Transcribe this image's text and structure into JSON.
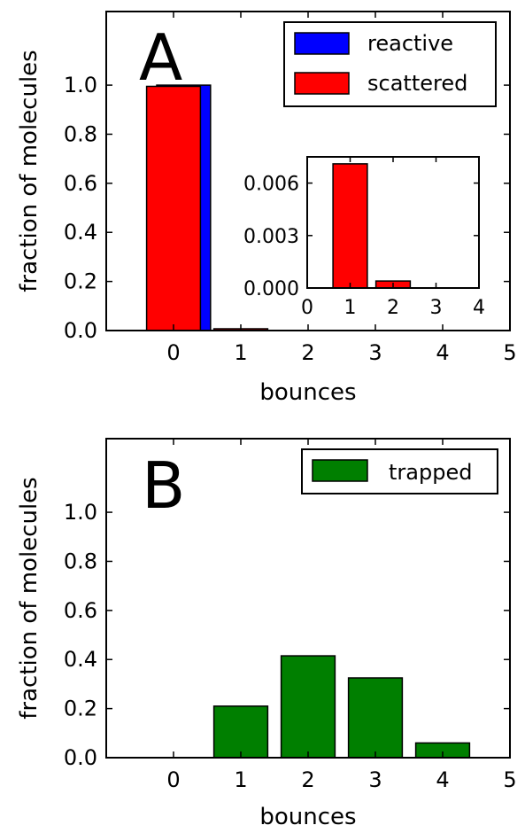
{
  "chart_data": [
    {
      "type": "bar",
      "panel_letter": "A",
      "xlabel": "bounces",
      "ylabel": "fraction of molecules",
      "xlim": [
        -1,
        5
      ],
      "ylim": [
        0,
        1.3
      ],
      "xticks": [
        "0",
        "1",
        "2",
        "3",
        "4",
        "5"
      ],
      "yticks": [
        "0.0",
        "0.2",
        "0.4",
        "0.6",
        "0.8",
        "1.0"
      ],
      "legend_position": "top-right",
      "series": [
        {
          "name": "reactive",
          "color": "#0000ff",
          "x": [
            0.15
          ],
          "values": [
            1.0
          ],
          "width": 0.8
        },
        {
          "name": "scattered",
          "color": "#ff0000",
          "x": [
            0,
            1
          ],
          "values": [
            0.995,
            0.0072
          ],
          "width": 0.8
        }
      ],
      "inset": {
        "xlim": [
          0,
          4
        ],
        "ylim": [
          0,
          0.0075
        ],
        "xticks": [
          "0",
          "1",
          "2",
          "3",
          "4"
        ],
        "yticks": [
          "0.000",
          "0.003",
          "0.006"
        ],
        "series": [
          {
            "color": "#ff0000",
            "x": [
              1,
              2
            ],
            "values": [
              0.0071,
              0.0004
            ],
            "width": 0.8
          }
        ]
      }
    },
    {
      "type": "bar",
      "panel_letter": "B",
      "xlabel": "bounces",
      "ylabel": "fraction of molecules",
      "xlim": [
        -1,
        5
      ],
      "ylim": [
        0,
        1.3
      ],
      "xticks": [
        "0",
        "1",
        "2",
        "3",
        "4",
        "5"
      ],
      "yticks": [
        "0.0",
        "0.2",
        "0.4",
        "0.6",
        "0.8",
        "1.0"
      ],
      "legend_position": "top-right",
      "series": [
        {
          "name": "trapped",
          "color": "#007f00",
          "x": [
            1,
            2,
            3,
            4
          ],
          "values": [
            0.21,
            0.415,
            0.325,
            0.06
          ],
          "width": 0.8
        }
      ]
    }
  ]
}
